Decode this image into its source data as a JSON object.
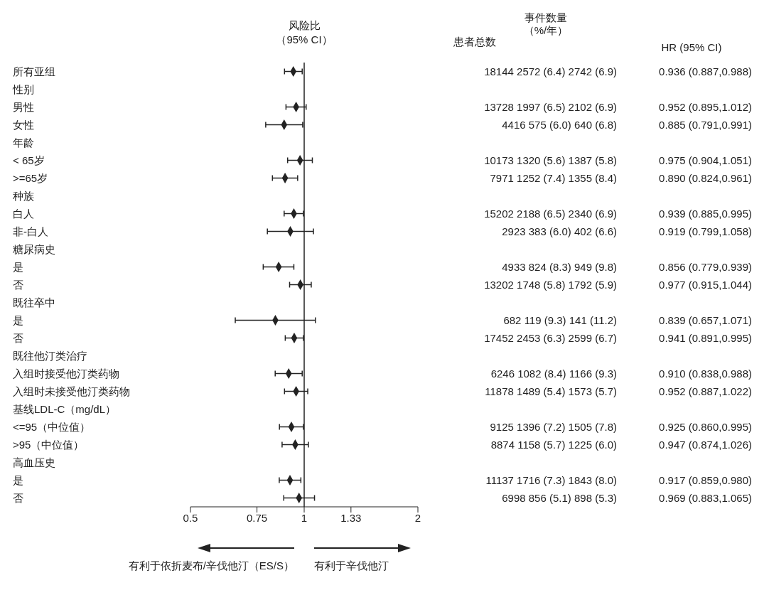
{
  "chart_data": {
    "type": "scatter",
    "orientation": "horizontal",
    "log": "x",
    "xlim": [
      0.5,
      2
    ],
    "xticks": [
      0.5,
      0.75,
      1,
      1.33,
      2
    ],
    "grid": false,
    "legend": false,
    "marker": "diamond",
    "categories": [
      "所有亚组",
      "性别",
      "男性",
      "女性",
      "年龄",
      "< 65岁",
      ">=65岁",
      "种族",
      "白人",
      "非-白人",
      "糖尿病史",
      "是",
      "否",
      "既往卒中",
      "是",
      "否",
      "既往他汀类治疗",
      "入组时接受他汀类药物",
      "入组时未接受他汀类药物",
      "基线LDL-C（mg/dL）",
      "<=95（中位值）",
      ">95（中位值）",
      "高血压史",
      "是",
      "否"
    ],
    "series": [
      {
        "color": "#222222",
        "values": [
          0.936,
          null,
          0.952,
          0.885,
          null,
          0.975,
          0.89,
          null,
          0.939,
          0.919,
          null,
          0.856,
          0.977,
          null,
          0.839,
          0.941,
          null,
          0.91,
          0.952,
          null,
          0.925,
          0.947,
          null,
          0.917,
          0.969
        ],
        "errors": [
          [
            0.887,
            0.988
          ],
          null,
          [
            0.895,
            1.012
          ],
          [
            0.791,
            0.991
          ],
          null,
          [
            0.904,
            1.051
          ],
          [
            0.824,
            0.961
          ],
          null,
          [
            0.885,
            0.995
          ],
          [
            0.799,
            1.058
          ],
          null,
          [
            0.779,
            0.939
          ],
          [
            0.915,
            1.044
          ],
          null,
          [
            0.657,
            1.071
          ],
          [
            0.891,
            0.995
          ],
          null,
          [
            0.838,
            0.988
          ],
          [
            0.887,
            1.022
          ],
          null,
          [
            0.86,
            0.995
          ],
          [
            0.874,
            1.026
          ],
          null,
          [
            0.859,
            0.98
          ],
          [
            0.883,
            1.065
          ]
        ],
        "value_labels": [
          "0.936 (0.887,0.988)",
          null,
          "0.952 (0.895,1.012)",
          "0.885 (0.791,0.991)",
          null,
          "0.975 (0.904,1.051)",
          "0.890 (0.824,0.961)",
          null,
          "0.939 (0.885,0.995)",
          "0.919 (0.799,1.058)",
          null,
          "0.856 (0.779,0.939)",
          "0.977 (0.915,1.044)",
          null,
          "0.839 (0.657,1.071)",
          "0.941 (0.891,0.995)",
          null,
          "0.910 (0.838,0.988)",
          "0.952 (0.887,1.022)",
          null,
          "0.925 (0.860,0.995)",
          "0.947 (0.874,1.026)",
          null,
          "0.917 (0.859,0.980)",
          "0.969 (0.883,1.065)"
        ]
      }
    ],
    "ref_lines": [
      {
        "axis": "x",
        "value": 1,
        "color": "#222222"
      }
    ],
    "annotations": [
      "风险比（95% CI）",
      "患者总数",
      "事件数量（%/年）",
      "HR (95% CI)",
      "有利于依折麦布/辛伐他汀（ES/S）",
      "有利于辛伐他汀",
      "18144 2572 (6.4) 2742 (6.9)",
      "13728 1997 (6.5) 2102 (6.9)",
      "4416 575 (6.0) 640 (6.8)",
      "10173 1320 (5.6) 1387 (5.8)",
      "7971 1252 (7.4) 1355 (8.4)",
      "15202 2188 (6.5) 2340 (6.9)",
      "2923 383 (6.0) 402 (6.6)",
      "4933 824 (8.3) 949 (9.8)",
      "13202 1748 (5.8) 1792 (5.9)",
      "682 119 (9.3) 141 (11.2)",
      "17452 2453 (6.3) 2599 (6.7)",
      "6246 1082 (8.4) 1166 (9.3)",
      "11878 1489 (5.4) 1573 (5.7)",
      "9125 1396 (7.2) 1505 (7.8)",
      "8874 1158 (5.7) 1225 (6.0)",
      "11137 1716 (7.3) 1843 (8.0)",
      "6998 856 (5.1) 898 (5.3)"
    ]
  }
}
